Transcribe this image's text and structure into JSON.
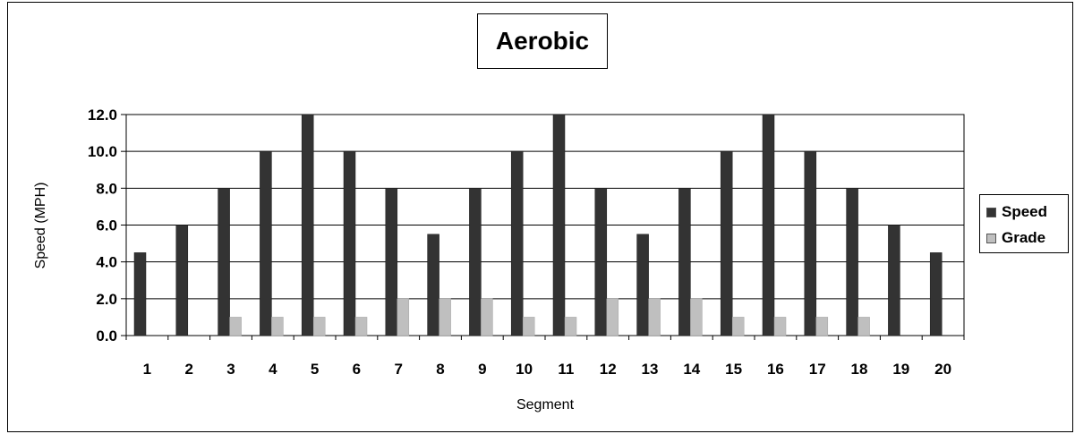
{
  "chart_data": {
    "type": "bar",
    "title": "Aerobic",
    "xlabel": "Segment",
    "ylabel": "Speed (MPH)",
    "ylim": [
      0,
      12
    ],
    "yticks": [
      "0.0",
      "2.0",
      "4.0",
      "6.0",
      "8.0",
      "10.0",
      "12.0"
    ],
    "categories": [
      "1",
      "2",
      "3",
      "4",
      "5",
      "6",
      "7",
      "8",
      "9",
      "10",
      "11",
      "12",
      "13",
      "14",
      "15",
      "16",
      "17",
      "18",
      "19",
      "20"
    ],
    "series": [
      {
        "name": "Speed",
        "color": "#333333",
        "values": [
          4.5,
          6.0,
          8.0,
          10.0,
          12.0,
          10.0,
          8.0,
          5.5,
          8.0,
          10.0,
          12.0,
          8.0,
          5.5,
          8.0,
          10.0,
          12.0,
          10.0,
          8.0,
          6.0,
          4.5
        ]
      },
      {
        "name": "Grade",
        "color": "#bfbfbf",
        "values": [
          0,
          0,
          1.0,
          1.0,
          1.0,
          1.0,
          2.0,
          2.0,
          2.0,
          1.0,
          1.0,
          2.0,
          2.0,
          2.0,
          1.0,
          1.0,
          1.0,
          1.0,
          0,
          0
        ]
      }
    ],
    "grid": true,
    "legend_position": "right"
  }
}
